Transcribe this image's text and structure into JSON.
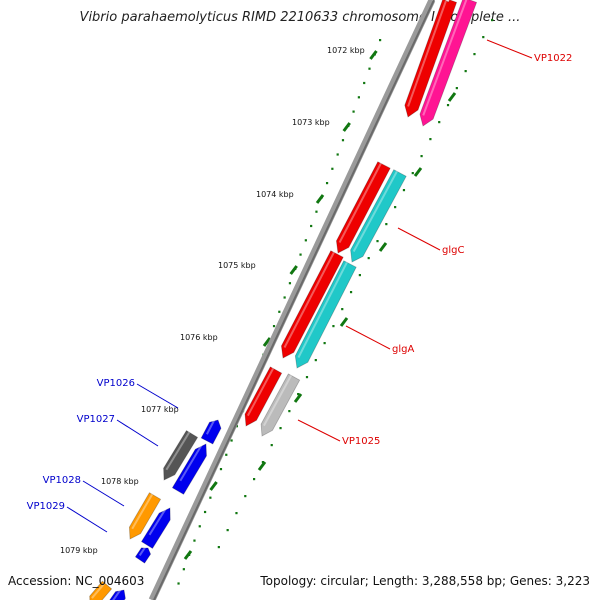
{
  "title": "Vibrio parahaemolyticus RIMD 2210633 chromosome I, complete ...",
  "footer": {
    "accession": "Accession: NC_004603",
    "summary": "Topology: circular; Length: 3,288,558 bp; Genes: 3,223"
  },
  "colors": {
    "red_gene": "#ee0000",
    "pink_gene": "#ff1493",
    "cyan_gene": "#20c8c8",
    "blue_gene": "#0000ee",
    "orange_gene": "#ff9900",
    "gray_gene": "#555555",
    "silver_gene": "#bbbbbb",
    "tick": "#117711",
    "label_red": "#dd0000",
    "label_blue": "#0000cc"
  },
  "ticks": [
    "1072 kbp",
    "1073 kbp",
    "1074 kbp",
    "1075 kbp",
    "1076 kbp",
    "1077 kbp",
    "1078 kbp",
    "1079 kbp"
  ],
  "gene_labels": [
    {
      "text": "VP1022",
      "side": "right",
      "color": "label_red"
    },
    {
      "text": "glgC",
      "side": "right",
      "color": "label_red"
    },
    {
      "text": "glgA",
      "side": "right",
      "color": "label_red"
    },
    {
      "text": "VP1025",
      "side": "right",
      "color": "label_red"
    },
    {
      "text": "VP1026",
      "side": "left",
      "color": "label_blue"
    },
    {
      "text": "VP1027",
      "side": "left",
      "color": "label_blue"
    },
    {
      "text": "VP1028",
      "side": "left",
      "color": "label_blue"
    },
    {
      "text": "VP1029",
      "side": "left",
      "color": "label_blue"
    }
  ]
}
